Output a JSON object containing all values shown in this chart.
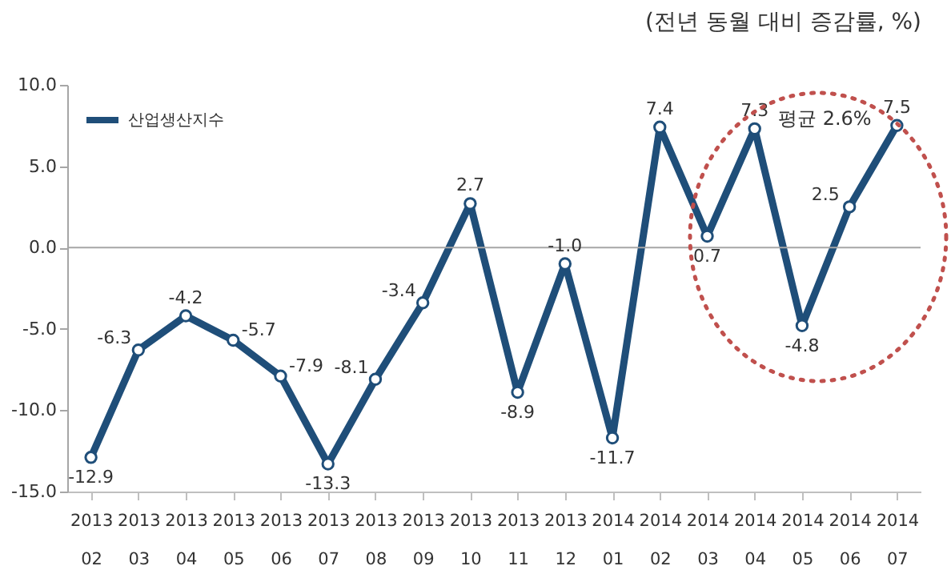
{
  "chart_data": {
    "type": "line",
    "title": "(전년 동월 대비 증감률, %)",
    "annotations": [
      "평균 2.6%"
    ],
    "categories": [
      "2013 02",
      "2013 03",
      "2013 04",
      "2013 05",
      "2013 06",
      "2013 07",
      "2013 08",
      "2013 09",
      "2013 10",
      "2013 11",
      "2013 12",
      "2014 01",
      "2014 02",
      "2014 03",
      "2014 04",
      "2014 05",
      "2014 06",
      "2014 07"
    ],
    "series": [
      {
        "name": "산업생산지수",
        "color": "#1f4e79",
        "values": [
          -12.9,
          -6.3,
          -4.2,
          -5.7,
          -7.9,
          -13.3,
          -8.1,
          -3.4,
          2.7,
          -8.9,
          -1.0,
          -11.7,
          7.4,
          0.7,
          7.3,
          -4.8,
          2.5,
          7.5
        ],
        "value_labels": [
          "-12.9",
          "-6.3",
          "-4.2",
          "-5.7",
          "-7.9",
          "-13.3",
          "-8.1",
          "-3.4",
          "2.7",
          "-8.9",
          "-1.0",
          "-11.7",
          "7.4",
          "0.7",
          "7.3",
          "-4.8",
          "2.5",
          "7.5"
        ]
      }
    ],
    "ylim": [
      -15,
      10
    ],
    "yticks": [
      {
        "value": -15,
        "label": "-15.0"
      },
      {
        "value": -10,
        "label": "-10.0"
      },
      {
        "value": -5,
        "label": "-5.0"
      },
      {
        "value": 0,
        "label": "0.0"
      },
      {
        "value": 5,
        "label": "5.0"
      },
      {
        "value": 10,
        "label": "10.0"
      }
    ],
    "ref_lines": [
      {
        "axis": "y",
        "value": 0,
        "color": "#a6a6a6"
      }
    ],
    "grid": false,
    "legend": "top left",
    "marker": "circle",
    "line_style": "solid"
  }
}
